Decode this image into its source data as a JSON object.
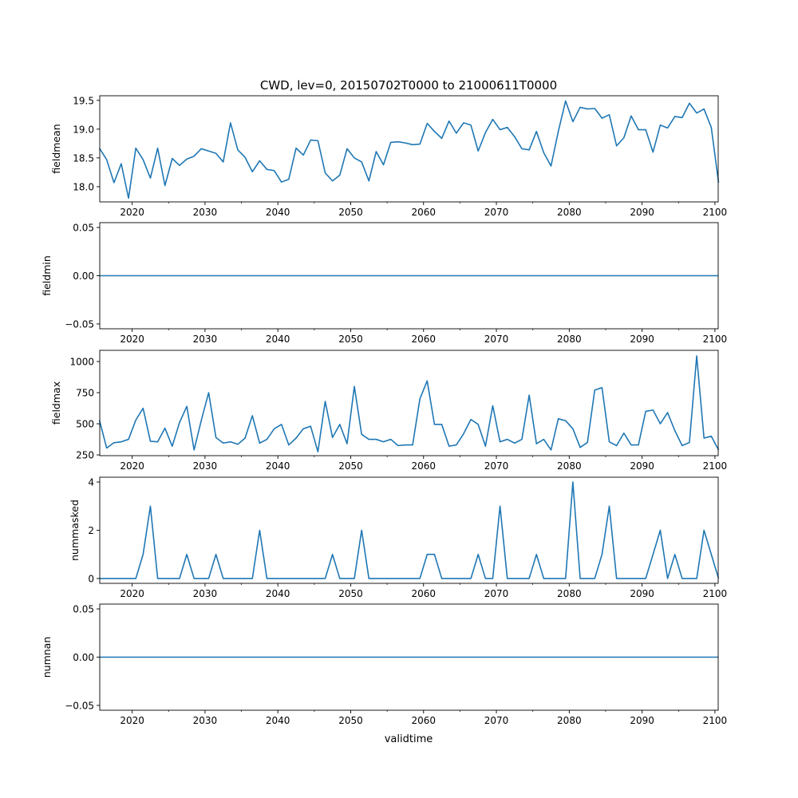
{
  "chart_data": {
    "type": "line",
    "title": "CWD, lev=0, 20150702T0000 to 21000611T0000",
    "xlabel": "validtime",
    "x_start": 2015.5,
    "x_step": 1,
    "xlim": [
      2015.55,
      2100.45
    ],
    "xticks": [
      2020,
      2030,
      2040,
      2050,
      2060,
      2070,
      2080,
      2090,
      2100
    ],
    "xtick_labels": [
      "2020",
      "2030",
      "2040",
      "2050",
      "2060",
      "2070",
      "2080",
      "2090",
      "2100"
    ],
    "minor_xticks": [
      2015,
      2025,
      2035,
      2045,
      2055,
      2065,
      2075,
      2085,
      2095
    ],
    "line_color": "#1f77b4",
    "grid": false,
    "panels": [
      {
        "ylabel": "fieldmean",
        "ylim": [
          17.736,
          19.58
        ],
        "yticks": [
          18.0,
          18.5,
          19.0,
          19.5
        ],
        "ytick_labels": [
          "18.0",
          "18.5",
          "19.0",
          "19.5"
        ],
        "values": [
          18.67,
          18.47,
          18.07,
          18.4,
          17.8,
          18.67,
          18.47,
          18.15,
          18.67,
          18.02,
          18.49,
          18.37,
          18.48,
          18.53,
          18.66,
          18.62,
          18.58,
          18.43,
          19.11,
          18.64,
          18.51,
          18.26,
          18.45,
          18.3,
          18.28,
          18.08,
          18.13,
          18.67,
          18.55,
          18.81,
          18.8,
          18.24,
          18.1,
          18.2,
          18.66,
          18.5,
          18.43,
          18.1,
          18.61,
          18.38,
          18.77,
          18.78,
          18.76,
          18.73,
          18.74,
          19.1,
          18.96,
          18.84,
          19.14,
          18.93,
          19.11,
          19.07,
          18.62,
          18.94,
          19.17,
          18.99,
          19.03,
          18.87,
          18.66,
          18.64,
          18.96,
          18.59,
          18.36,
          18.96,
          19.49,
          19.13,
          19.38,
          19.35,
          19.36,
          19.19,
          19.25,
          18.71,
          18.85,
          19.23,
          18.99,
          18.99,
          18.6,
          19.07,
          19.02,
          19.22,
          19.2,
          19.45,
          19.28,
          19.35,
          19.03,
          18.07
        ]
      },
      {
        "ylabel": "fieldmin",
        "ylim": [
          -0.055,
          0.055
        ],
        "yticks": [
          -0.05,
          0.0,
          0.05
        ],
        "ytick_labels": [
          "−0.05",
          "0.00",
          "0.05"
        ],
        "constant": 0
      },
      {
        "ylabel": "fieldmax",
        "ylim": [
          244,
          1090
        ],
        "yticks": [
          250,
          500,
          750,
          1000
        ],
        "ytick_labels": [
          "250",
          "500",
          "750",
          "1000"
        ],
        "values": [
          530,
          305,
          348,
          355,
          375,
          530,
          625,
          360,
          355,
          465,
          320,
          510,
          640,
          290,
          530,
          750,
          390,
          345,
          355,
          335,
          385,
          565,
          345,
          375,
          460,
          495,
          330,
          385,
          460,
          480,
          275,
          680,
          390,
          495,
          340,
          800,
          415,
          375,
          375,
          355,
          375,
          325,
          330,
          330,
          700,
          845,
          495,
          495,
          320,
          330,
          420,
          535,
          495,
          320,
          645,
          355,
          375,
          345,
          375,
          730,
          340,
          375,
          290,
          540,
          525,
          460,
          310,
          350,
          770,
          790,
          355,
          325,
          425,
          330,
          330,
          600,
          610,
          500,
          590,
          445,
          325,
          350,
          1045,
          385,
          400,
          290
        ]
      },
      {
        "ylabel": "nummasked",
        "ylim": [
          -0.2,
          4.2
        ],
        "yticks": [
          0,
          2,
          4
        ],
        "ytick_labels": [
          "0",
          "2",
          "4"
        ],
        "values": [
          0,
          0,
          0,
          0,
          0,
          0,
          1,
          3,
          0,
          0,
          0,
          0,
          1,
          0,
          0,
          0,
          1,
          0,
          0,
          0,
          0,
          0,
          2,
          0,
          0,
          0,
          0,
          0,
          0,
          0,
          0,
          0,
          1,
          0,
          0,
          0,
          2,
          0,
          0,
          0,
          0,
          0,
          0,
          0,
          0,
          1,
          1,
          0,
          0,
          0,
          0,
          0,
          1,
          0,
          0,
          3,
          0,
          0,
          0,
          0,
          1,
          0,
          0,
          0,
          0,
          4,
          0,
          0,
          0,
          1,
          3,
          0,
          0,
          0,
          0,
          0,
          1,
          2,
          0,
          1,
          0,
          0,
          0,
          2,
          1,
          0
        ]
      },
      {
        "ylabel": "numnan",
        "ylim": [
          -0.055,
          0.055
        ],
        "yticks": [
          -0.05,
          0.0,
          0.05
        ],
        "ytick_labels": [
          "−0.05",
          "0.00",
          "0.05"
        ],
        "constant": 0
      }
    ]
  }
}
